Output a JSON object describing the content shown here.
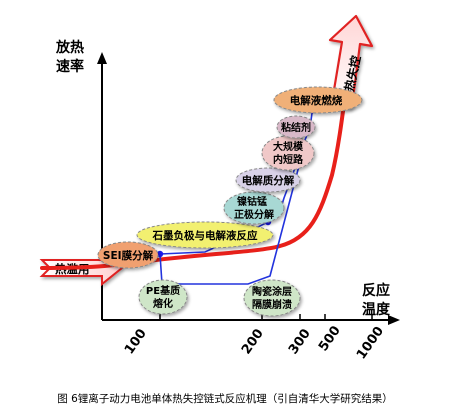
{
  "axes": {
    "y_label_line1": "放热",
    "y_label_line2": "速率",
    "x_label_line1": "反应",
    "x_label_line2": "温度",
    "ticks": [
      "100",
      "200",
      "300",
      "500",
      "1000"
    ]
  },
  "arrows": {
    "trigger": "热滥用",
    "runaway": "热失控"
  },
  "stages": [
    {
      "id": "sei",
      "label": "SEI膜分解",
      "color": "#f0a070"
    },
    {
      "id": "graphite",
      "label": "石墨负极与电解液反应",
      "color": "#f2f070"
    },
    {
      "id": "nmc",
      "label_line1": "镍钴锰",
      "label_line2": "正极分解",
      "color": "#a8d8d4"
    },
    {
      "id": "electrolyte_decomp",
      "label": "电解质分解",
      "color": "#d9d2e8"
    },
    {
      "id": "short",
      "label_line1": "大规模",
      "label_line2": "内短路",
      "color": "#f0c8c8"
    },
    {
      "id": "binder",
      "label": "粘结剂",
      "color": "#d8b8c8"
    },
    {
      "id": "electrolyte_burn",
      "label": "电解液燃烧",
      "color": "#f0b078"
    }
  ],
  "separator": {
    "pe": {
      "label_line1": "PE基质",
      "label_line2": "熔化",
      "color": "#cfe6c8"
    },
    "ceramic": {
      "label_line1": "陶瓷涂层",
      "label_line2": "隔膜崩溃",
      "color": "#cfe6c8"
    }
  },
  "caption": "图  6锂离子动力电池单体热失控链式反应机理（引自清华大学研究结果）",
  "colors": {
    "curve": "#e8201a",
    "chain": "#2233dd",
    "node": "#1a1aee",
    "axis": "#000000"
  }
}
